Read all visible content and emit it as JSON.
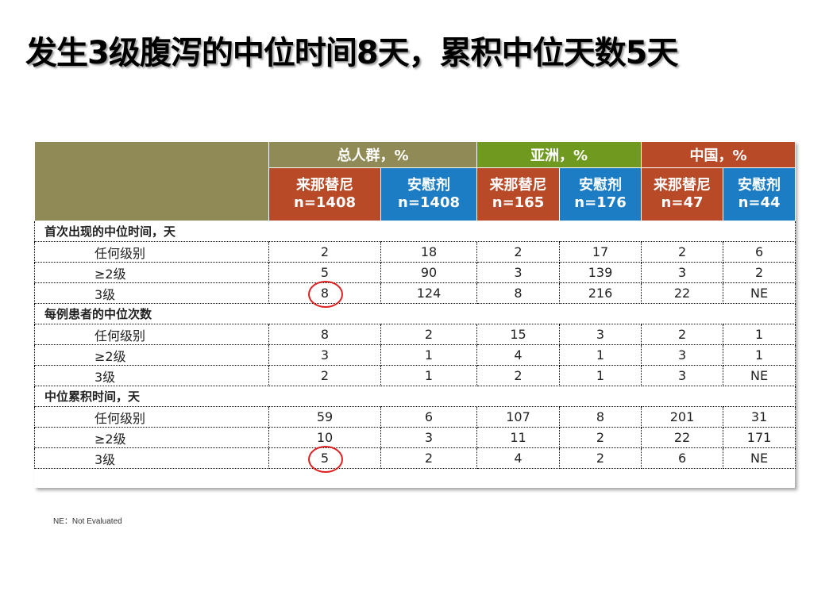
{
  "title": "发生3级腹泻的中位时间8天，累积中位天数5天",
  "groups": [
    "总人群，%",
    "亚洲，%",
    "中国，%"
  ],
  "columns": [
    {
      "drug": "来那替尼",
      "n": "n=1408"
    },
    {
      "drug": "安慰剂",
      "n": "n=1408"
    },
    {
      "drug": "来那替尼",
      "n": "n=165"
    },
    {
      "drug": "安慰剂",
      "n": "n=176"
    },
    {
      "drug": "来那替尼",
      "n": "n=47"
    },
    {
      "drug": "安慰剂",
      "n": "n=44"
    }
  ],
  "sections": [
    {
      "title": "首次出现的中位时间，天",
      "rows": [
        {
          "label": "任何级别",
          "values": [
            "2",
            "18",
            "2",
            "17",
            "2",
            "6"
          ]
        },
        {
          "label": "≥2级",
          "values": [
            "5",
            "90",
            "3",
            "139",
            "3",
            "2"
          ]
        },
        {
          "label": "3级",
          "values": [
            "8",
            "124",
            "8",
            "216",
            "22",
            "NE"
          ]
        }
      ]
    },
    {
      "title": "每例患者的中位次数",
      "rows": [
        {
          "label": "任何级别",
          "values": [
            "8",
            "2",
            "15",
            "3",
            "2",
            "1"
          ]
        },
        {
          "label": "≥2级",
          "values": [
            "3",
            "1",
            "4",
            "1",
            "3",
            "1"
          ]
        },
        {
          "label": "3级",
          "values": [
            "2",
            "1",
            "2",
            "1",
            "3",
            "NE"
          ]
        }
      ]
    },
    {
      "title": "中位累积时间，天",
      "rows": [
        {
          "label": "任何级别",
          "values": [
            "59",
            "6",
            "107",
            "8",
            "201",
            "31"
          ]
        },
        {
          "label": "≥2级",
          "values": [
            "10",
            "3",
            "11",
            "2",
            "22",
            "171"
          ]
        },
        {
          "label": "3级",
          "values": [
            "5",
            "2",
            "4",
            "2",
            "6",
            "NE"
          ]
        }
      ]
    }
  ],
  "footnote": "NE：Not Evaluated",
  "colors": {
    "olive": "#8f8a56",
    "green": "#6f9a1f",
    "rust": "#b84a28",
    "blue": "#1c7dc4",
    "highlight": "#e02020"
  }
}
